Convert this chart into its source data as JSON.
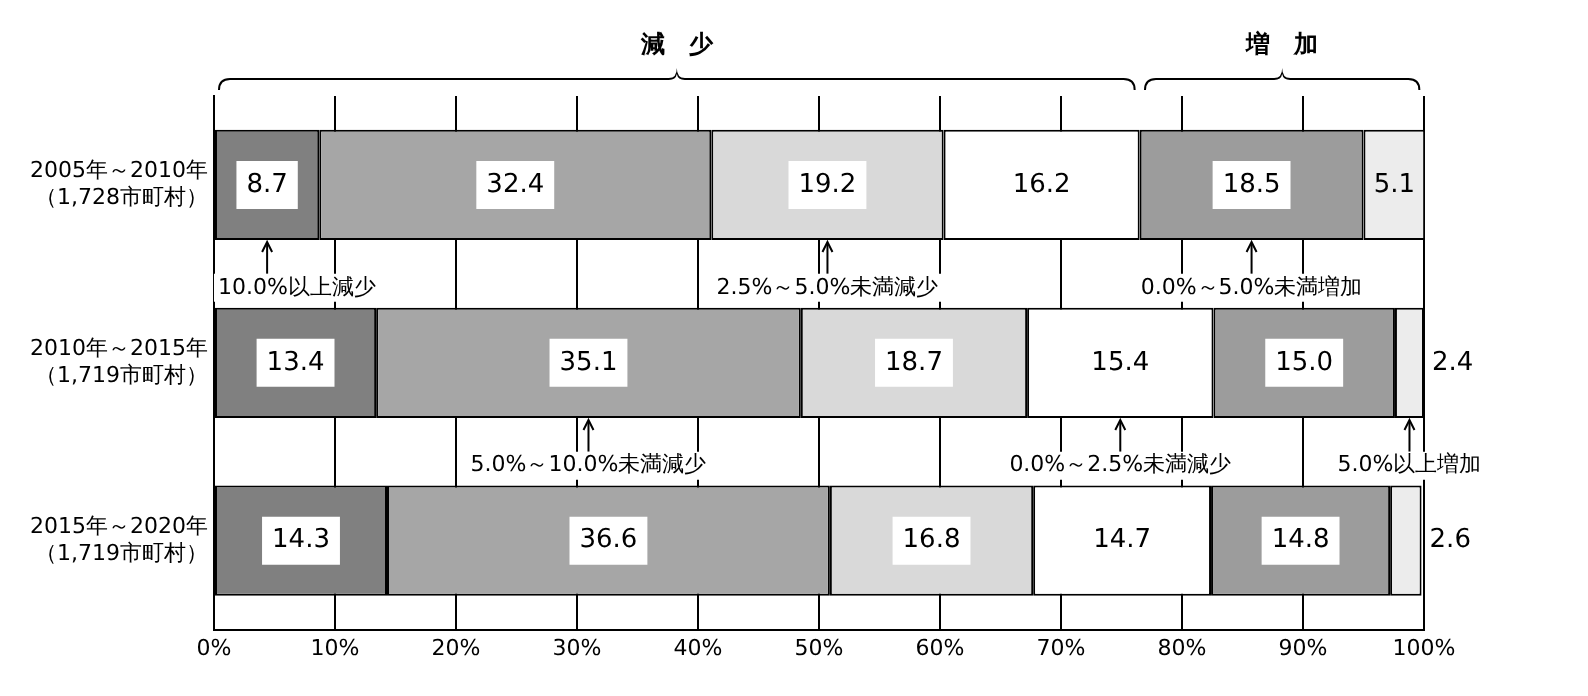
{
  "chart_data": {
    "type": "bar",
    "orientation": "horizontal",
    "stacked": true,
    "categories": [
      "2005年～2010年（1,728市町村）",
      "2010年～2015年（1,719市町村）",
      "2015年～2020年（1,719市町村）"
    ],
    "series": [
      {
        "name": "10.0%以上減少",
        "color": "#808080",
        "values": [
          8.7,
          13.4,
          14.3
        ]
      },
      {
        "name": "5.0%～10.0%未満減少",
        "color": "#a6a6a6",
        "values": [
          32.4,
          35.1,
          36.6
        ]
      },
      {
        "name": "2.5%～5.0%未満減少",
        "color": "#d9d9d9",
        "values": [
          19.2,
          18.7,
          16.8
        ]
      },
      {
        "name": "0.0%～2.5%未満減少",
        "color": "#ffffff",
        "values": [
          16.2,
          15.4,
          14.7
        ]
      },
      {
        "name": "0.0%～5.0%未満増加",
        "color": "#9c9c9c",
        "values": [
          18.5,
          15.0,
          14.8
        ],
        "value_labels": [
          "18.5",
          "15.0",
          "14.8"
        ]
      },
      {
        "name": "5.0%以上増加",
        "color": "#ececec",
        "values": [
          5.1,
          2.4,
          2.6
        ]
      }
    ],
    "xlim": [
      0,
      100
    ],
    "xticks": [
      {
        "value": 0,
        "label": "0%"
      },
      {
        "value": 10,
        "label": "10%"
      },
      {
        "value": 20,
        "label": "20%"
      },
      {
        "value": 30,
        "label": "30%"
      },
      {
        "value": 40,
        "label": "40%"
      },
      {
        "value": 50,
        "label": "50%"
      },
      {
        "value": 60,
        "label": "60%"
      },
      {
        "value": 70,
        "label": "70%"
      },
      {
        "value": 80,
        "label": "80%"
      },
      {
        "value": 90,
        "label": "90%"
      },
      {
        "value": 100,
        "label": "100%"
      }
    ],
    "grid": "x",
    "legend": false,
    "data_labels": true,
    "annotations": [
      "減　少",
      "増　加"
    ]
  }
}
